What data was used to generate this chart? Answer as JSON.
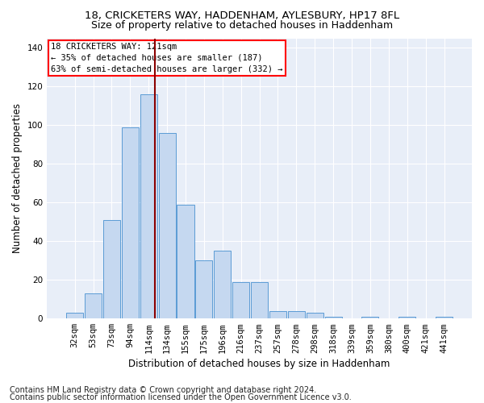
{
  "title1": "18, CRICKETERS WAY, HADDENHAM, AYLESBURY, HP17 8FL",
  "title2": "Size of property relative to detached houses in Haddenham",
  "xlabel": "Distribution of detached houses by size in Haddenham",
  "ylabel": "Number of detached properties",
  "footnote1": "Contains HM Land Registry data © Crown copyright and database right 2024.",
  "footnote2": "Contains public sector information licensed under the Open Government Licence v3.0.",
  "bar_color": "#c5d8f0",
  "bar_edge_color": "#5b9bd5",
  "annotation_text1": "18 CRICKETERS WAY: 121sqm",
  "annotation_text2": "← 35% of detached houses are smaller (187)",
  "annotation_text3": "63% of semi-detached houses are larger (332) →",
  "categories": [
    "32sqm",
    "53sqm",
    "73sqm",
    "94sqm",
    "114sqm",
    "134sqm",
    "155sqm",
    "175sqm",
    "196sqm",
    "216sqm",
    "237sqm",
    "257sqm",
    "278sqm",
    "298sqm",
    "318sqm",
    "339sqm",
    "359sqm",
    "380sqm",
    "400sqm",
    "421sqm",
    "441sqm"
  ],
  "bar_values": [
    3,
    13,
    51,
    99,
    116,
    96,
    59,
    30,
    35,
    19,
    19,
    4,
    4,
    3,
    1,
    0,
    1,
    0,
    1,
    0,
    1
  ],
  "ylim": [
    0,
    145
  ],
  "yticks": [
    0,
    20,
    40,
    60,
    80,
    100,
    120,
    140
  ],
  "plot_bg_color": "#e8eef8",
  "grid_color": "#ffffff",
  "title_fontsize": 9.5,
  "subtitle_fontsize": 9,
  "axis_label_fontsize": 8.5,
  "tick_fontsize": 7.5,
  "footnote_fontsize": 7
}
